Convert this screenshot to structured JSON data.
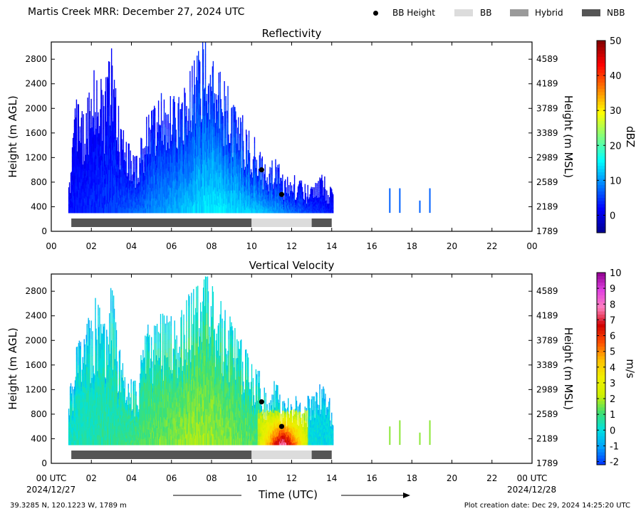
{
  "header": {
    "title": "Martis Creek MRR:  December 27, 2024 UTC",
    "legend": [
      {
        "label": "BB Height",
        "kind": "dot",
        "color": "#000000"
      },
      {
        "label": "BB",
        "kind": "swatch",
        "color": "#dcdcdc"
      },
      {
        "label": "Hybrid",
        "kind": "swatch",
        "color": "#9a9a9a"
      },
      {
        "label": "NBB",
        "kind": "swatch",
        "color": "#555555"
      }
    ]
  },
  "footer": {
    "location": "39.3285 N, 120.1223 W, 1789 m",
    "creation_date": "Plot creation date: Dec 29, 2024 14:25:20 UTC",
    "x_axis_label": "Time (UTC)",
    "start_date": "2024/12/27",
    "end_date": "2024/12/28"
  },
  "chart_data": [
    {
      "type": "heatmap",
      "title": "Reflectivity",
      "ylabel": "Height (m AGL)",
      "ylabel_right": "Height (m MSL)",
      "colorbar_label": "dBZ",
      "xlim": [
        0,
        24
      ],
      "ylim": [
        0,
        3080
      ],
      "x_ticks": [
        "00",
        "02",
        "04",
        "06",
        "08",
        "10",
        "12",
        "14",
        "16",
        "18",
        "20",
        "22",
        "00"
      ],
      "y_ticks": [
        "0",
        "400",
        "800",
        "1200",
        "1600",
        "2000",
        "2400",
        "2800"
      ],
      "y_ticks_right": [
        "1789",
        "2189",
        "2589",
        "2989",
        "3389",
        "3789",
        "4189",
        "4589"
      ],
      "colorbar_ticks": [
        "0",
        "10",
        "20",
        "30",
        "40",
        "50"
      ],
      "colorbar_range": [
        -5,
        50
      ],
      "colorbar_colors": [
        "#00008f",
        "#0000ff",
        "#0080ff",
        "#00ffff",
        "#80ff80",
        "#ffff00",
        "#ff8000",
        "#ff0000",
        "#800000"
      ],
      "echo_top_m_agl": [
        [
          0.9,
          900
        ],
        [
          1.2,
          2100
        ],
        [
          1.6,
          1950
        ],
        [
          2.2,
          2700
        ],
        [
          2.6,
          2200
        ],
        [
          3.0,
          2950
        ],
        [
          3.4,
          1800
        ],
        [
          3.9,
          1350
        ],
        [
          4.2,
          1200
        ],
        [
          4.8,
          2000
        ],
        [
          5.4,
          2200
        ],
        [
          6.2,
          2150
        ],
        [
          7.0,
          2600
        ],
        [
          7.6,
          3080
        ],
        [
          8.2,
          2600
        ],
        [
          8.6,
          2450
        ],
        [
          9.2,
          2000
        ],
        [
          9.8,
          1700
        ],
        [
          10.3,
          1350
        ],
        [
          10.7,
          1000
        ],
        [
          11.2,
          1200
        ],
        [
          11.6,
          850
        ],
        [
          12.0,
          950
        ],
        [
          12.5,
          800
        ],
        [
          13.0,
          700
        ],
        [
          13.5,
          900
        ],
        [
          14.0,
          700
        ]
      ],
      "field_dbz_by_hour": [
        [
          0.9,
          3
        ],
        [
          2.0,
          4
        ],
        [
          3.0,
          5
        ],
        [
          4.0,
          7
        ],
        [
          5.0,
          9
        ],
        [
          6.0,
          11
        ],
        [
          7.0,
          13
        ],
        [
          8.0,
          15
        ],
        [
          9.0,
          14
        ],
        [
          10.0,
          13
        ],
        [
          11.0,
          11
        ],
        [
          12.0,
          8
        ],
        [
          13.0,
          5
        ],
        [
          14.0,
          3
        ]
      ],
      "isolated_echoes": [
        {
          "x": 16.9,
          "top": 700
        },
        {
          "x": 17.4,
          "top": 700
        },
        {
          "x": 18.4,
          "top": 500
        },
        {
          "x": 18.9,
          "top": 700
        }
      ],
      "bright_band_height_points": [
        {
          "x": 10.5,
          "y": 1000
        },
        {
          "x": 11.5,
          "y": 600
        }
      ],
      "classification_bar": [
        {
          "start": 1.0,
          "end": 10.0,
          "class": "NBB"
        },
        {
          "start": 10.0,
          "end": 13.0,
          "class": "BB"
        },
        {
          "start": 13.0,
          "end": 14.0,
          "class": "NBB"
        }
      ]
    },
    {
      "type": "heatmap",
      "title": "Vertical Velocity",
      "ylabel": "Height (m AGL)",
      "ylabel_right": "Height (m MSL)",
      "colorbar_label": "m/s",
      "xlim": [
        0,
        24
      ],
      "ylim": [
        0,
        3080
      ],
      "x_ticks": [
        "00 UTC",
        "02",
        "04",
        "06",
        "08",
        "10",
        "12",
        "14",
        "16",
        "18",
        "20",
        "22",
        "00 UTC"
      ],
      "y_ticks": [
        "0",
        "400",
        "800",
        "1200",
        "1600",
        "2000",
        "2400",
        "2800"
      ],
      "y_ticks_right": [
        "1789",
        "2189",
        "2589",
        "2989",
        "3389",
        "3789",
        "4189",
        "4589"
      ],
      "colorbar_ticks": [
        "-2",
        "-1",
        "0",
        "1",
        "2",
        "3",
        "4",
        "5",
        "6",
        "7",
        "8",
        "9",
        "10"
      ],
      "colorbar_range": [
        -2.2,
        10
      ],
      "colorbar_colors": [
        "#0030ff",
        "#00a0ff",
        "#00e0e0",
        "#40e070",
        "#d0f000",
        "#f0f000",
        "#ffc000",
        "#ff5000",
        "#d00000",
        "#ff80c0",
        "#e040e0",
        "#900090"
      ],
      "echo_top_m_agl": [
        [
          0.9,
          1200
        ],
        [
          1.3,
          2000
        ],
        [
          1.6,
          2050
        ],
        [
          2.2,
          2600
        ],
        [
          2.6,
          2300
        ],
        [
          3.0,
          2900
        ],
        [
          3.4,
          1800
        ],
        [
          3.9,
          1350
        ],
        [
          4.2,
          1300
        ],
        [
          4.8,
          2200
        ],
        [
          5.4,
          2400
        ],
        [
          6.2,
          2300
        ],
        [
          7.0,
          2750
        ],
        [
          7.6,
          3080
        ],
        [
          8.2,
          2700
        ],
        [
          8.6,
          2500
        ],
        [
          9.2,
          2100
        ],
        [
          9.8,
          1800
        ],
        [
          10.3,
          1500
        ],
        [
          10.7,
          1200
        ],
        [
          11.2,
          1350
        ],
        [
          11.6,
          1000
        ],
        [
          12.0,
          1100
        ],
        [
          12.5,
          1000
        ],
        [
          13.0,
          1100
        ],
        [
          13.5,
          1300
        ],
        [
          14.0,
          1000
        ]
      ],
      "velocity_ms_by_hour": [
        [
          0.9,
          0.3
        ],
        [
          2.0,
          0.5
        ],
        [
          3.0,
          0.7
        ],
        [
          4.0,
          1.0
        ],
        [
          5.0,
          1.3
        ],
        [
          6.0,
          1.6
        ],
        [
          7.0,
          1.9
        ],
        [
          8.0,
          1.8
        ],
        [
          9.0,
          1.6
        ],
        [
          10.0,
          1.2
        ],
        [
          11.0,
          0.6
        ],
        [
          12.0,
          0.2
        ],
        [
          13.0,
          0.0
        ],
        [
          14.0,
          -0.2
        ]
      ],
      "strong_fall_region": {
        "x": [
          10.3,
          12.8
        ],
        "y": [
          300,
          800
        ],
        "max_ms": 6
      },
      "isolated_echoes": [
        {
          "x": 16.9,
          "top": 600
        },
        {
          "x": 17.4,
          "top": 700
        },
        {
          "x": 18.4,
          "top": 500
        },
        {
          "x": 18.9,
          "top": 700
        }
      ],
      "bright_band_height_points": [
        {
          "x": 10.5,
          "y": 1000
        },
        {
          "x": 11.5,
          "y": 600
        }
      ],
      "classification_bar": [
        {
          "start": 1.0,
          "end": 10.0,
          "class": "NBB"
        },
        {
          "start": 10.0,
          "end": 13.0,
          "class": "BB"
        },
        {
          "start": 13.0,
          "end": 14.0,
          "class": "NBB"
        }
      ]
    }
  ]
}
